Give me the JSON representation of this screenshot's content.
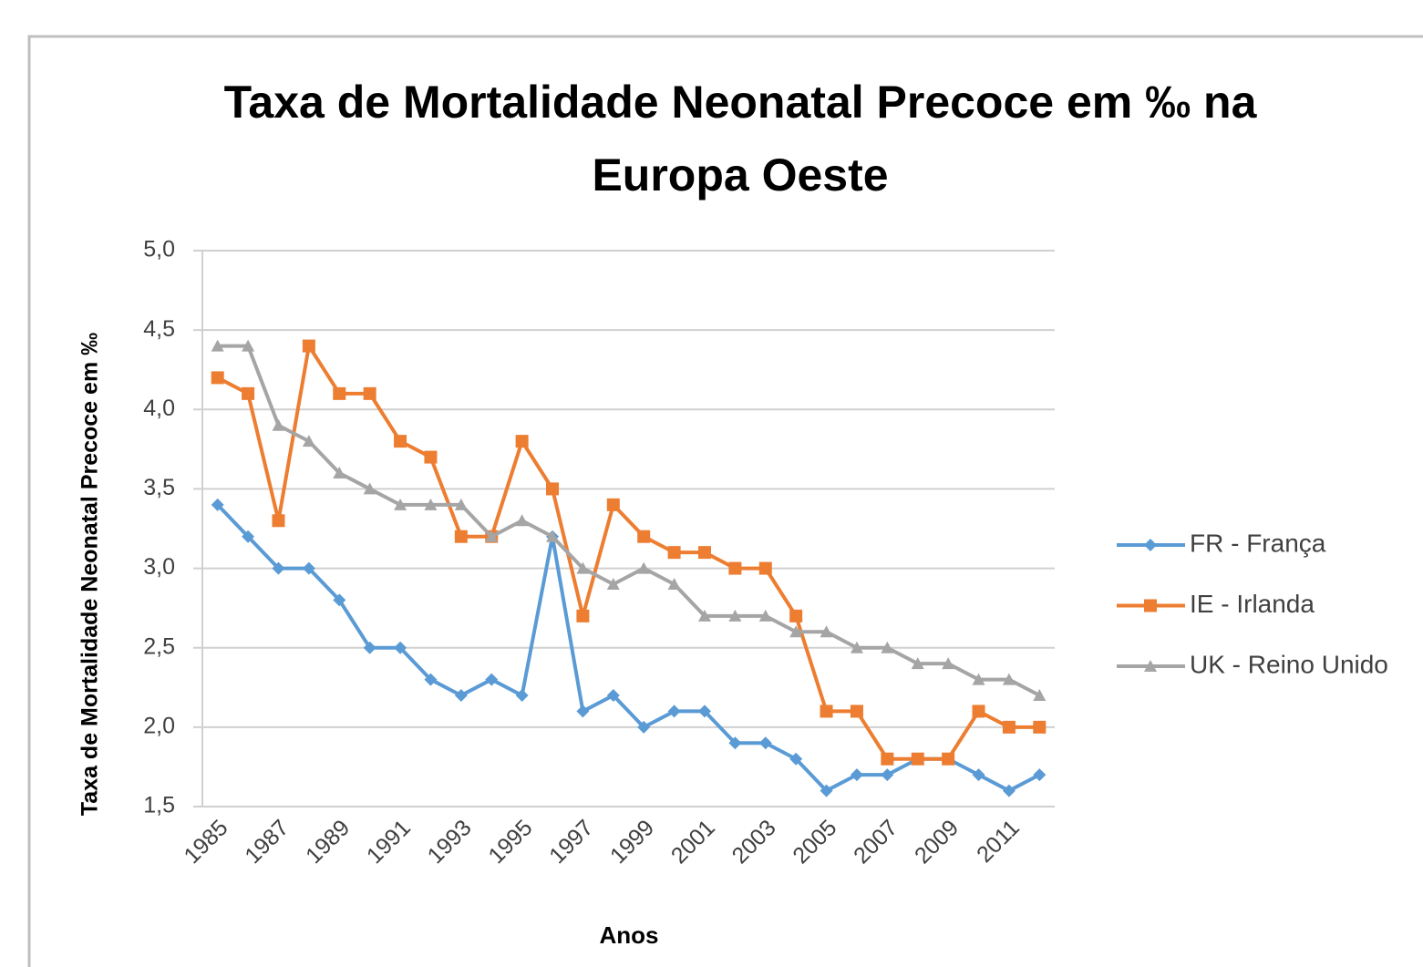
{
  "chart_data": {
    "type": "line",
    "title": "Taxa de Mortalidade Neonatal Precoce em ‰ na Europa Oeste",
    "y_label": "Taxa de Mortalidade Neonatal Precoce em ‰",
    "x_label": "Anos",
    "categories": [
      "1985",
      null,
      "1987",
      null,
      "1989",
      null,
      "1991",
      null,
      "1993",
      null,
      "1995",
      null,
      "1997",
      null,
      "1999",
      null,
      "2001",
      null,
      "2003",
      null,
      "2005",
      null,
      "2007",
      null,
      "2009",
      null,
      "2011",
      null
    ],
    "series": [
      {
        "name": "FR - França",
        "color": "#5b9bd5",
        "marker": "diamond",
        "values": [
          3.4,
          3.2,
          3.0,
          3.0,
          2.8,
          2.5,
          2.5,
          2.3,
          2.2,
          2.3,
          2.2,
          3.2,
          2.1,
          2.2,
          2.0,
          2.1,
          2.1,
          1.9,
          1.9,
          1.8,
          1.6,
          1.7,
          1.7,
          1.8,
          1.8,
          1.7,
          1.6,
          1.7
        ]
      },
      {
        "name": "IE - Irlanda",
        "color": "#ed7d31",
        "marker": "square",
        "values": [
          4.2,
          4.1,
          3.3,
          4.4,
          4.1,
          4.1,
          3.8,
          3.7,
          3.2,
          3.2,
          3.8,
          3.5,
          2.7,
          3.4,
          3.2,
          3.1,
          3.1,
          3.0,
          3.0,
          2.7,
          2.1,
          2.1,
          1.8,
          1.8,
          1.8,
          2.1,
          2.0,
          2.0
        ]
      },
      {
        "name": "UK - Reino Unido",
        "color": "#a5a5a5",
        "marker": "triangle",
        "values": [
          4.4,
          4.4,
          3.9,
          3.8,
          3.6,
          3.5,
          3.4,
          3.4,
          3.4,
          3.2,
          3.3,
          3.2,
          3.0,
          2.9,
          3.0,
          2.9,
          2.7,
          2.7,
          2.7,
          2.6,
          2.6,
          2.5,
          2.5,
          2.4,
          2.4,
          2.3,
          2.3,
          2.2
        ]
      }
    ],
    "ylim": [
      1.5,
      5.0
    ],
    "yticks": [
      {
        "value": 1.5,
        "label": "1,5"
      },
      {
        "value": 2.0,
        "label": "2,0"
      },
      {
        "value": 2.5,
        "label": "2,5"
      },
      {
        "value": 3.0,
        "label": "3,0"
      },
      {
        "value": 3.5,
        "label": "3,5"
      },
      {
        "value": 4.0,
        "label": "4,0"
      },
      {
        "value": 4.5,
        "label": "4,5"
      },
      {
        "value": 5.0,
        "label": "5,0"
      }
    ],
    "grid": true,
    "legend": "right"
  }
}
